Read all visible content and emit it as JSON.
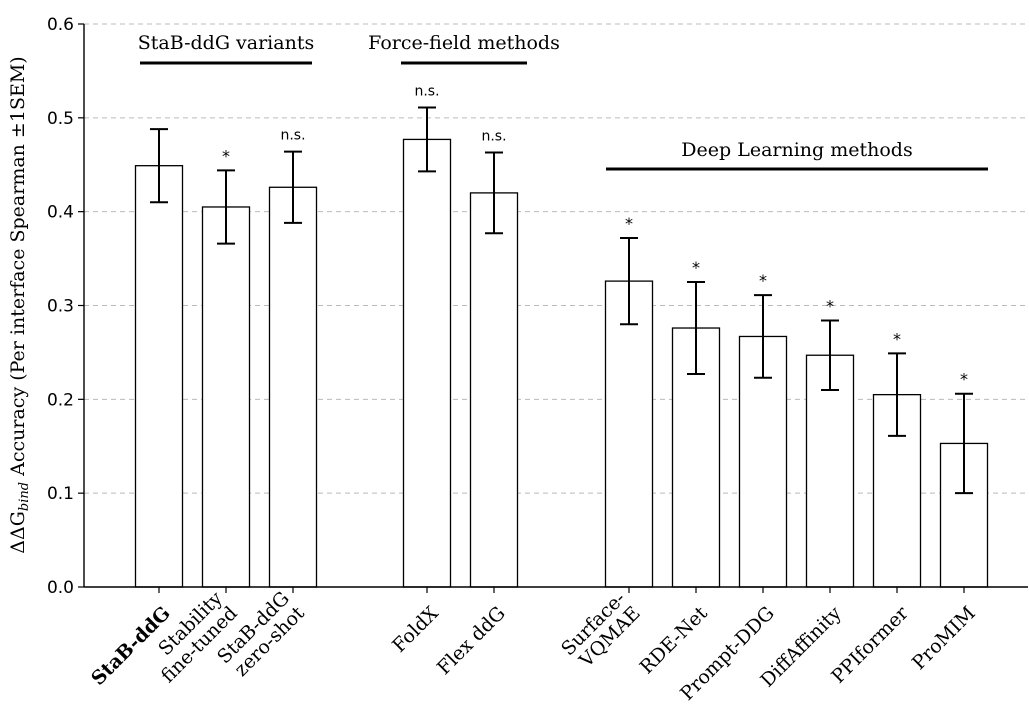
{
  "chart_data": {
    "type": "bar",
    "ylabel_prefix": "ΔΔG",
    "ylabel_subscript": "bind",
    "ylabel_suffix": " Accuracy (Per interface Spearman ±1SEM)",
    "ylim": [
      0,
      0.6
    ],
    "yticks": [
      0.0,
      0.1,
      0.2,
      0.3,
      0.4,
      0.5,
      0.6
    ],
    "ytick_labels": [
      "0.0",
      "0.1",
      "0.2",
      "0.3",
      "0.4",
      "0.5",
      "0.6"
    ],
    "grid": true,
    "categories": [
      {
        "lines": [
          "StaB-ddG"
        ],
        "bold": true
      },
      {
        "lines": [
          "Stability",
          "fine-tuned"
        ]
      },
      {
        "lines": [
          "StaB-ddG",
          "zero-shot"
        ]
      },
      {
        "lines": [
          "FoldX"
        ]
      },
      {
        "lines": [
          "Flex ddG"
        ]
      },
      {
        "lines": [
          "Surface-",
          "VQMAE"
        ]
      },
      {
        "lines": [
          "RDE-Net"
        ]
      },
      {
        "lines": [
          "Prompt-DDG"
        ]
      },
      {
        "lines": [
          "DiffAffinity"
        ]
      },
      {
        "lines": [
          "PPIformer"
        ]
      },
      {
        "lines": [
          "ProMIM"
        ]
      }
    ],
    "values": [
      0.449,
      0.405,
      0.426,
      0.477,
      0.42,
      0.326,
      0.276,
      0.267,
      0.247,
      0.205,
      0.153
    ],
    "errors": [
      0.039,
      0.039,
      0.038,
      0.034,
      0.043,
      0.046,
      0.049,
      0.044,
      0.037,
      0.044,
      0.053
    ],
    "significance": [
      "",
      "*",
      "n.s.",
      "n.s.",
      "n.s.",
      "*",
      "*",
      "*",
      "*",
      "*",
      "*"
    ],
    "groups": [
      {
        "label": "StaB-ddG variants",
        "first": 0,
        "last": 2
      },
      {
        "label": "Force-field methods",
        "first": 3,
        "last": 4
      },
      {
        "label": "Deep Learning methods",
        "first": 5,
        "last": 10
      }
    ]
  }
}
